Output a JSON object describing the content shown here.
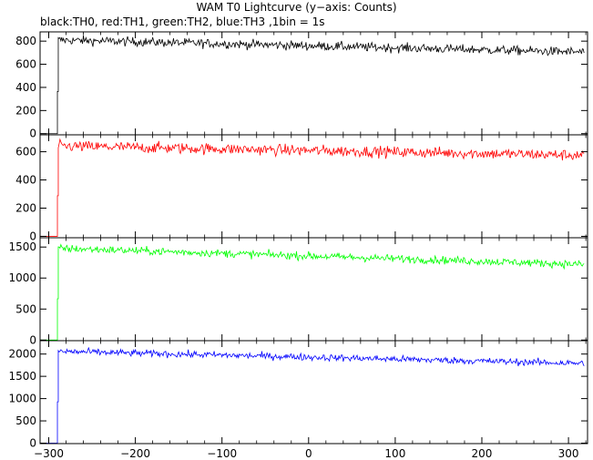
{
  "chart_data": {
    "type": "line",
    "title": "WAM T0 Lightcurve (y−axis: Counts)",
    "subtitle": "black:TH0, red:TH1, green:TH2, blue:TH3 ,1bin = 1s",
    "xlim": [
      -310,
      322
    ],
    "x_ticks": [
      -300,
      -200,
      -100,
      0,
      100,
      200,
      300
    ],
    "x_tick_labels": [
      "−300",
      "−200",
      "−100",
      "0",
      "100",
      "200",
      "300"
    ],
    "grid": false,
    "panels": [
      {
        "series_label": "TH0",
        "color": "#000000",
        "ylim": [
          -10,
          880
        ],
        "y_ticks": [
          0,
          200,
          400,
          600,
          800
        ],
        "x_start": -310,
        "x_rise": -290,
        "x_end": 318,
        "pre_level": 0,
        "plateau_start": 810,
        "plateau_end": 705,
        "noise": 28
      },
      {
        "series_label": "TH1",
        "color": "#ff0000",
        "ylim": [
          -10,
          720
        ],
        "y_ticks": [
          0,
          200,
          400,
          600
        ],
        "x_start": -310,
        "x_rise": -290,
        "x_end": 318,
        "pre_level": 0,
        "plateau_start": 640,
        "plateau_end": 575,
        "noise": 28
      },
      {
        "series_label": "TH2",
        "color": "#00ff00",
        "ylim": [
          -10,
          1650
        ],
        "y_ticks": [
          0,
          500,
          1000,
          1500
        ],
        "x_start": -310,
        "x_rise": -290,
        "x_end": 318,
        "pre_level": 0,
        "plateau_start": 1480,
        "plateau_end": 1220,
        "noise": 45
      },
      {
        "series_label": "TH3",
        "color": "#0000ff",
        "ylim": [
          -10,
          2300
        ],
        "y_ticks": [
          0,
          500,
          1000,
          1500,
          2000
        ],
        "x_start": -310,
        "x_rise": -290,
        "x_end": 318,
        "pre_level": 0,
        "plateau_start": 2060,
        "plateau_end": 1790,
        "noise": 55
      }
    ]
  }
}
